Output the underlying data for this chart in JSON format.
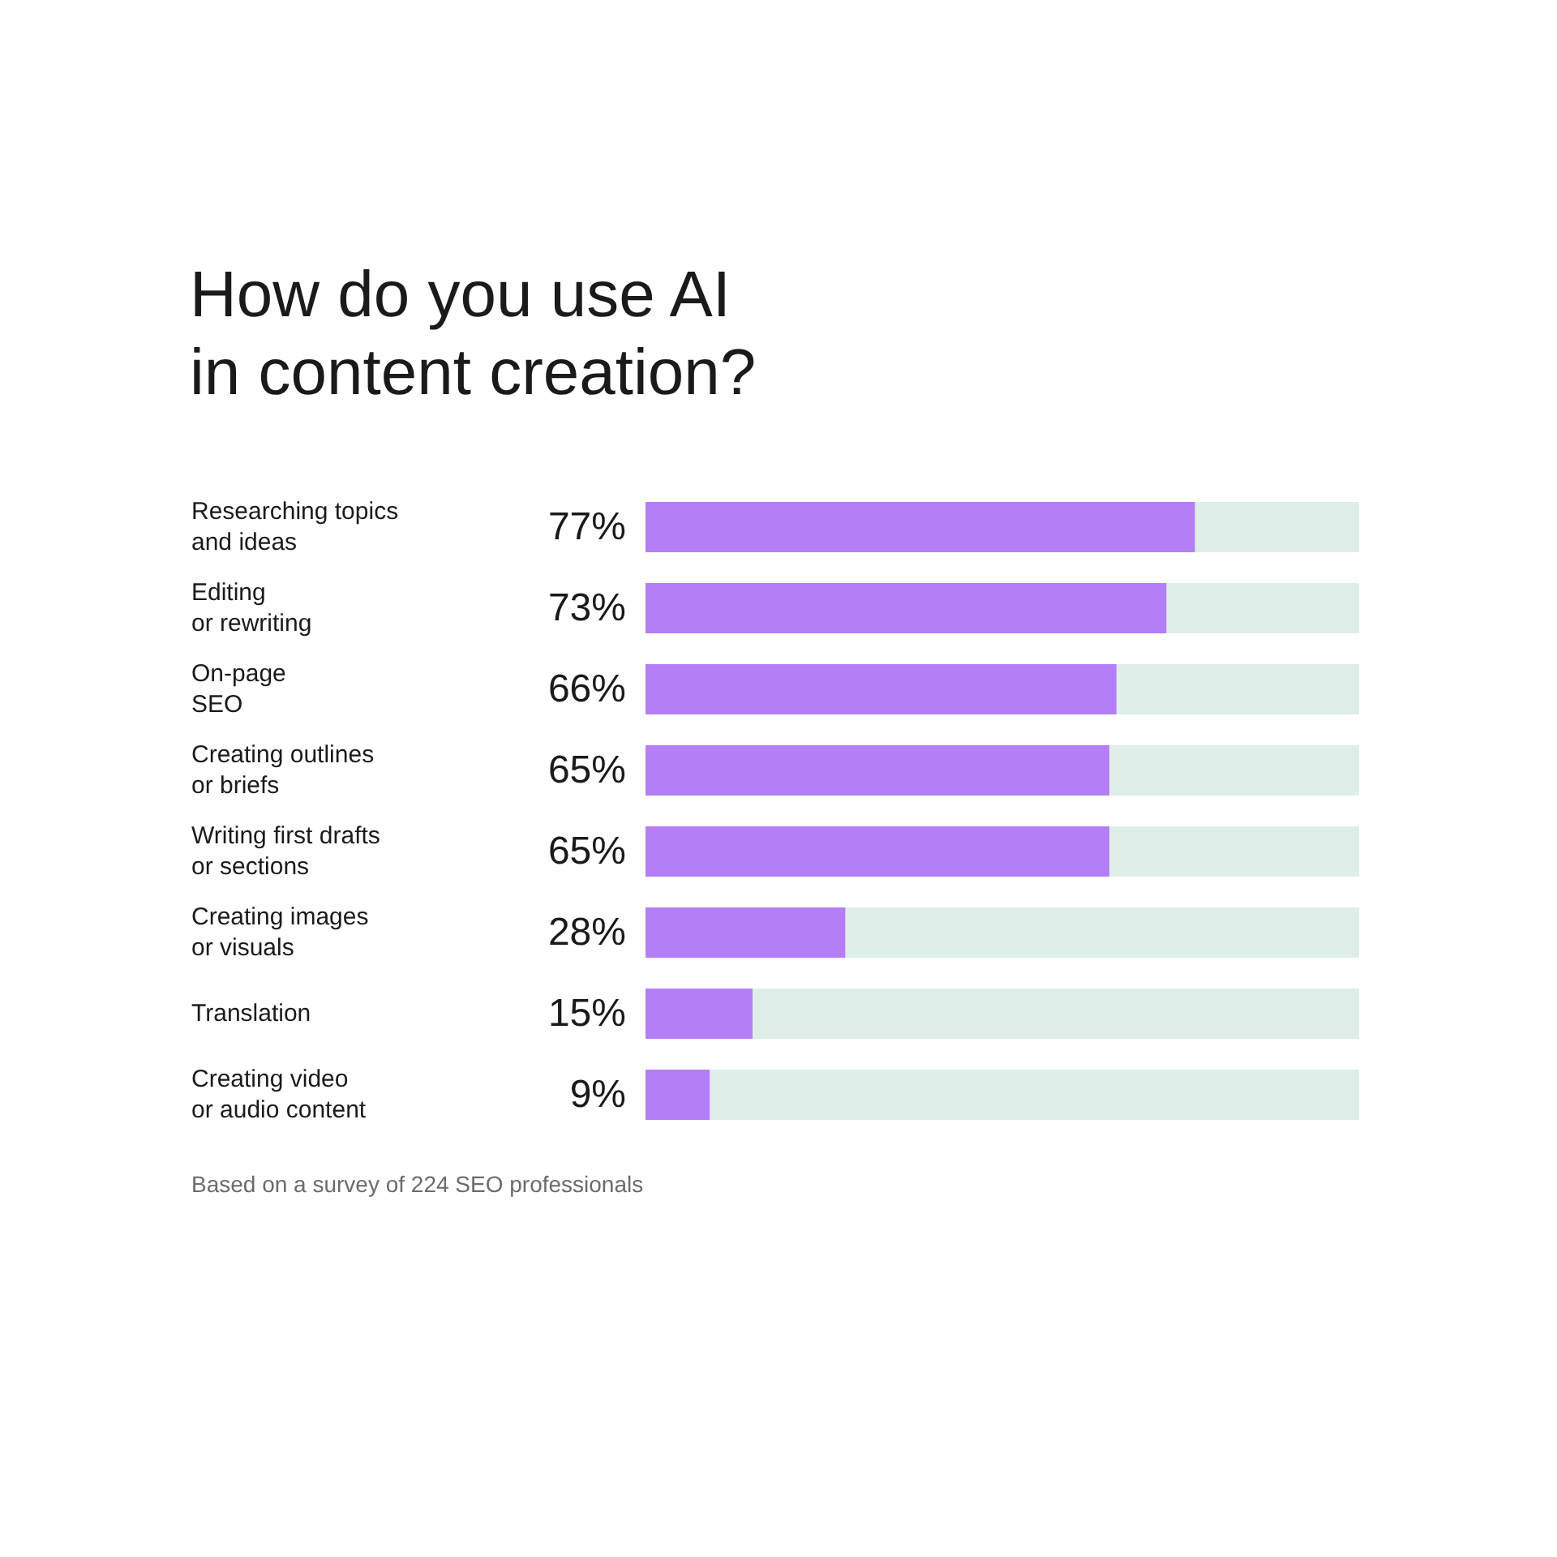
{
  "chart_data": {
    "type": "bar",
    "orientation": "horizontal",
    "title": "How do you use AI\nin content creation?",
    "categories": [
      "Researching topics\nand ideas",
      "Editing\nor rewriting",
      "On-page\nSEO",
      "Creating outlines\nor briefs",
      "Writing first drafts\nor sections",
      "Creating images\nor visuals",
      "Translation",
      "Creating video\nor audio content"
    ],
    "values": [
      77,
      73,
      66,
      65,
      65,
      28,
      15,
      9
    ],
    "value_labels": [
      "77%",
      "73%",
      "66%",
      "65%",
      "65%",
      "28%",
      "15%",
      "9%"
    ],
    "color": "#b47ef6",
    "xlim": [
      0,
      100
    ],
    "annotations": [
      "Based on a survey of 224 SEO professionals"
    ]
  }
}
